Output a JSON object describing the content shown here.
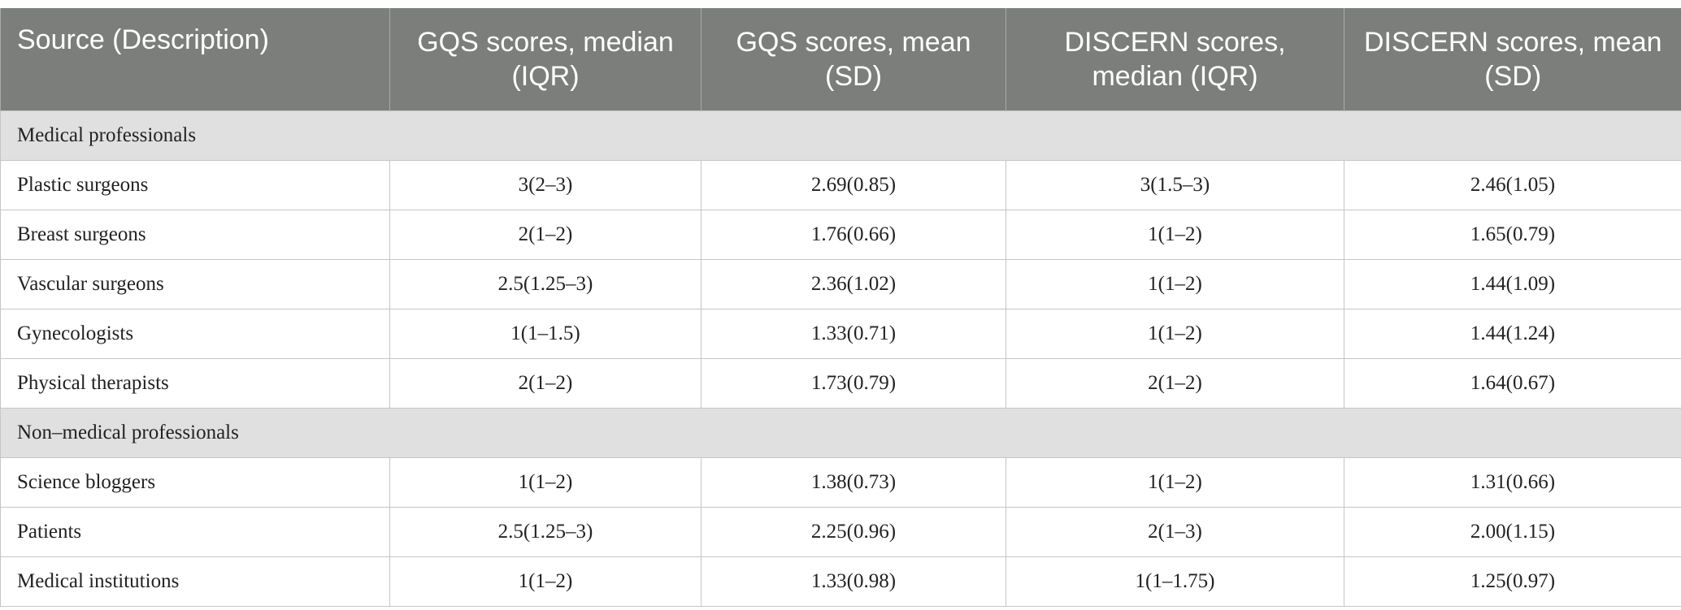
{
  "table": {
    "columns": [
      "Source (Description)",
      "GQS scores, median (IQR)",
      "GQS scores, mean (SD)",
      "DISCERN scores, median (IQR)",
      "DISCERN scores, mean (SD)"
    ],
    "sections": [
      {
        "label": "Medical professionals",
        "rows": [
          [
            "Plastic surgeons",
            "3(2–3)",
            "2.69(0.85)",
            "3(1.5–3)",
            "2.46(1.05)"
          ],
          [
            "Breast surgeons",
            "2(1–2)",
            "1.76(0.66)",
            "1(1–2)",
            "1.65(0.79)"
          ],
          [
            "Vascular surgeons",
            "2.5(1.25–3)",
            "2.36(1.02)",
            "1(1–2)",
            "1.44(1.09)"
          ],
          [
            "Gynecologists",
            "1(1–1.5)",
            "1.33(0.71)",
            "1(1–2)",
            "1.44(1.24)"
          ],
          [
            "Physical therapists",
            "2(1–2)",
            "1.73(0.79)",
            "2(1–2)",
            "1.64(0.67)"
          ]
        ]
      },
      {
        "label": "Non–medical professionals",
        "rows": [
          [
            "Science bloggers",
            "1(1–2)",
            "1.38(0.73)",
            "1(1–2)",
            "1.31(0.66)"
          ],
          [
            "Patients",
            "2.5(1.25–3)",
            "2.25(0.96)",
            "2(1–3)",
            "2.00(1.15)"
          ],
          [
            "Medical institutions",
            "1(1–2)",
            "1.33(0.98)",
            "1(1–1.75)",
            "1.25(0.97)"
          ]
        ]
      }
    ]
  }
}
